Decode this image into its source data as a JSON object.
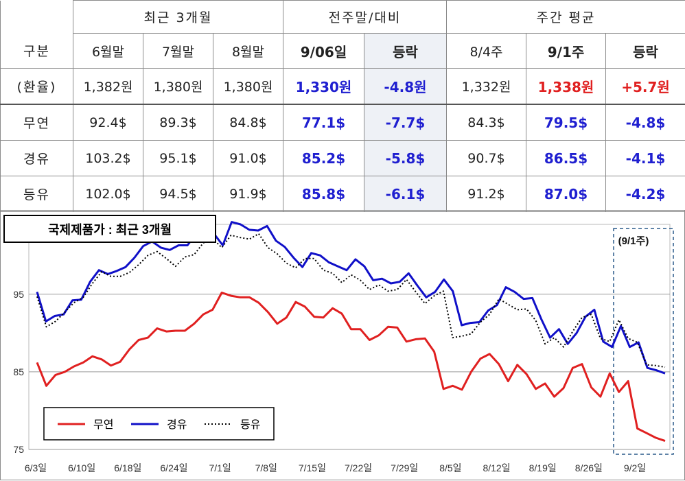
{
  "table": {
    "group_headers": [
      "최근 3개월",
      "전주말/대비",
      "주간 평균"
    ],
    "col_headers": [
      "구분",
      "6월말",
      "7월말",
      "8월말",
      "9/06일",
      "등락",
      "8/4주",
      "9/1주",
      "등락"
    ],
    "rows": [
      {
        "label": "(환율)",
        "values": [
          "1,382원",
          "1,380원",
          "1,380원",
          "1,330원",
          "-4.8원",
          "1,332원",
          "1,338원",
          "+5.7원"
        ]
      },
      {
        "label": "무연",
        "values": [
          "92.4$",
          "89.3$",
          "84.8$",
          "77.1$",
          "-7.7$",
          "84.3$",
          "79.5$",
          "-4.8$"
        ]
      },
      {
        "label": "경유",
        "values": [
          "103.2$",
          "95.1$",
          "91.0$",
          "85.2$",
          "-5.8$",
          "90.7$",
          "86.5$",
          "-4.1$"
        ]
      },
      {
        "label": "등유",
        "values": [
          "102.0$",
          "94.5$",
          "91.9$",
          "85.8$",
          "-6.1$",
          "91.2$",
          "87.0$",
          "-4.2$"
        ]
      }
    ]
  },
  "chart_data": {
    "type": "line",
    "title": "국제제품가 : 최근 3개월",
    "annotation": "(9/1주)",
    "x_tick_labels": [
      "6/3일",
      "6/10일",
      "6/18일",
      "6/24일",
      "7/1일",
      "7/8일",
      "7/15일",
      "7/22일",
      "7/29일",
      "8/5일",
      "8/12일",
      "8/19일",
      "8/26일",
      "9/2일"
    ],
    "y_ticks": [
      75,
      85,
      95
    ],
    "ylim": [
      75,
      104
    ],
    "grid": true,
    "legend_position": "bottom-left",
    "colors": {
      "무연": "#e02020",
      "경유": "#1010c8",
      "등유": "#000000"
    },
    "series": [
      {
        "name": "무연",
        "style": "solid",
        "values": [
          86.2,
          83.2,
          84.6,
          85.0,
          85.7,
          86.2,
          87.0,
          86.6,
          85.8,
          86.3,
          87.9,
          89.1,
          89.4,
          90.6,
          90.2,
          90.3,
          90.3,
          91.2,
          92.4,
          93.0,
          95.2,
          94.8,
          94.6,
          94.6,
          93.9,
          92.7,
          91.2,
          92.0,
          94.0,
          93.4,
          92.1,
          92.0,
          93.2,
          92.5,
          90.5,
          90.5,
          89.1,
          89.7,
          90.8,
          90.7,
          88.9,
          89.2,
          89.3,
          87.6,
          82.8,
          83.2,
          82.7,
          85.0,
          86.7,
          87.3,
          86.0,
          83.8,
          85.9,
          84.7,
          82.8,
          83.5,
          81.8,
          82.9,
          85.5,
          86.0,
          83.0,
          81.8,
          84.8,
          82.4,
          83.8,
          77.7,
          77.1,
          76.5,
          76.1
        ]
      },
      {
        "name": "경유",
        "style": "solid",
        "values": [
          95.3,
          91.5,
          92.2,
          92.4,
          94.2,
          94.3,
          96.6,
          98.1,
          97.6,
          98.0,
          98.5,
          99.7,
          101.2,
          101.8,
          101.0,
          100.7,
          101.3,
          101.3,
          102.8,
          104.0,
          102.8,
          101.3,
          104.3,
          104.0,
          103.3,
          103.2,
          103.8,
          101.9,
          101.1,
          99.7,
          98.5,
          100.3,
          100.0,
          99.1,
          98.6,
          98.1,
          99.5,
          98.6,
          96.8,
          97.0,
          96.4,
          96.6,
          97.7,
          96.1,
          94.6,
          95.3,
          96.9,
          95.4,
          91.0,
          91.3,
          91.4,
          92.9,
          93.6,
          95.9,
          95.3,
          94.4,
          94.5,
          91.8,
          89.4,
          90.5,
          88.6,
          90.0,
          92.1,
          93.0,
          88.9,
          88.2,
          90.9,
          88.2,
          88.8,
          85.5,
          85.2,
          84.8
        ]
      },
      {
        "name": "등유",
        "style": "dotted",
        "values": [
          94.7,
          90.8,
          91.5,
          92.7,
          93.9,
          94.6,
          96.4,
          97.9,
          97.3,
          97.3,
          97.8,
          98.8,
          100.0,
          100.5,
          99.6,
          98.6,
          99.8,
          100.1,
          101.6,
          102.2,
          101.0,
          102.6,
          102.3,
          102.1,
          102.8,
          101.0,
          100.2,
          99.0,
          98.4,
          99.6,
          99.6,
          98.1,
          97.7,
          96.5,
          97.5,
          96.8,
          95.6,
          96.2,
          95.4,
          95.6,
          96.9,
          95.3,
          93.8,
          94.8,
          95.4,
          89.4,
          89.6,
          89.9,
          91.4,
          92.4,
          94.4,
          93.7,
          93.0,
          93.1,
          91.6,
          88.6,
          89.4,
          88.2,
          90.2,
          92.0,
          92.4,
          89.3,
          88.9,
          91.7,
          89.3,
          88.8,
          85.9,
          85.8,
          85.6
        ]
      }
    ]
  }
}
